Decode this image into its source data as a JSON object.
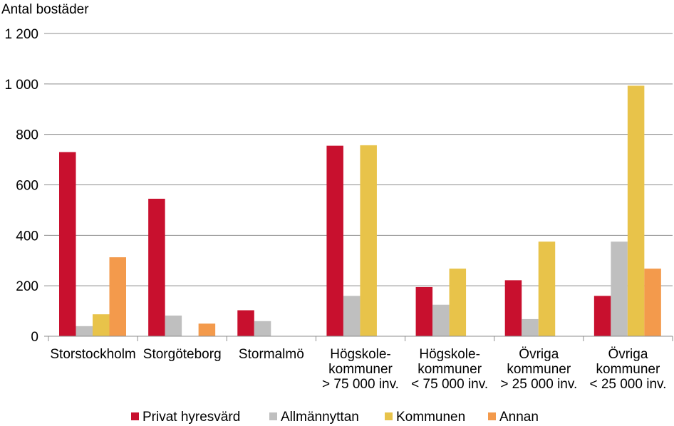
{
  "chart_data": {
    "type": "bar",
    "ylabel": "Antal bostäder",
    "ylim": [
      0,
      1200
    ],
    "yticks": [
      0,
      200,
      400,
      600,
      800,
      1000,
      1200
    ],
    "ytick_labels": [
      "0",
      "200",
      "400",
      "600",
      "800",
      "1 000",
      "1 200"
    ],
    "grid": true,
    "legend_position": "bottom",
    "categories": [
      [
        "Storstockholm"
      ],
      [
        "Storgöteborg"
      ],
      [
        "Stormalmö"
      ],
      [
        "Högskole-",
        "kommuner",
        "> 75 000 inv."
      ],
      [
        "Högskole-",
        "kommuner",
        "< 75 000 inv."
      ],
      [
        "Övriga",
        "kommuner",
        "> 25 000 inv."
      ],
      [
        "Övriga",
        "kommuner",
        "< 25 000 inv."
      ]
    ],
    "series": [
      {
        "name": "Privat hyresvärd",
        "color": "#c8102e",
        "values": [
          730,
          545,
          103,
          755,
          195,
          222,
          160
        ]
      },
      {
        "name": "Allmännyttan",
        "color": "#bfbfbf",
        "values": [
          40,
          82,
          60,
          160,
          125,
          68,
          375
        ]
      },
      {
        "name": "Kommunen",
        "color": "#e8c34a",
        "values": [
          87,
          0,
          0,
          757,
          268,
          375,
          993
        ]
      },
      {
        "name": "Annan",
        "color": "#f39a4c",
        "values": [
          313,
          50,
          0,
          0,
          0,
          0,
          268
        ]
      }
    ]
  }
}
